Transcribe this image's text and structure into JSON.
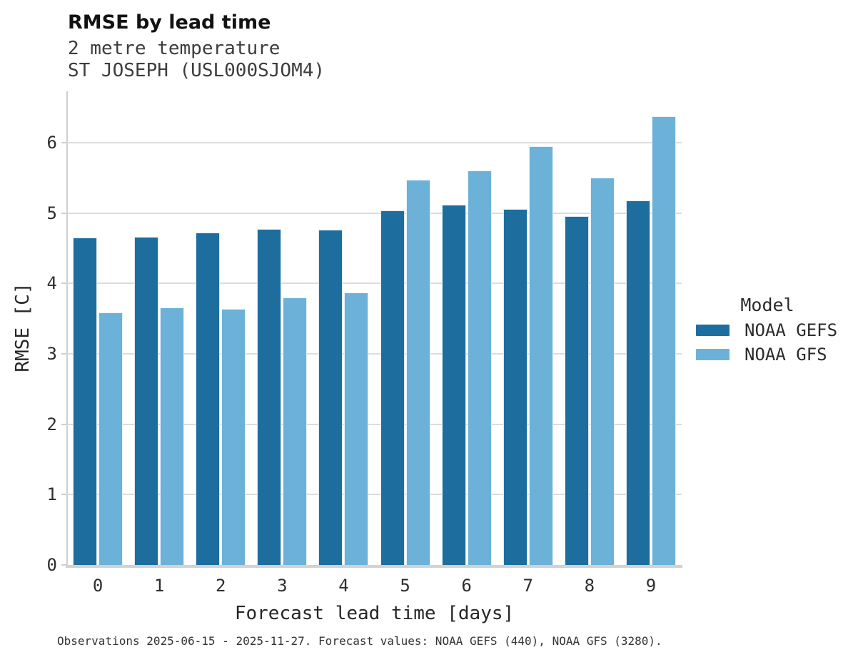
{
  "header": {
    "title": "RMSE by lead time",
    "subtitle_line1": "2 metre temperature",
    "subtitle_line2": "ST JOSEPH (USL000SJOM4)"
  },
  "legend": {
    "title": "Model",
    "items": [
      {
        "label": "NOAA GEFS",
        "color": "#1D6E9E"
      },
      {
        "label": "NOAA GFS",
        "color": "#6CB1D8"
      }
    ]
  },
  "caption": "Observations 2025-06-15 - 2025-11-27. Forecast values: NOAA GEFS (440), NOAA GFS (3280).",
  "colors": {
    "series_dark": "#1D6E9E",
    "series_light": "#6CB1D8",
    "gridline": "#dcdcdc",
    "spine": "#cfcfcf",
    "background": "#ffffff"
  },
  "chart_data": {
    "type": "bar",
    "title": "RMSE by lead time",
    "subtitle": [
      "2 metre temperature",
      "ST JOSEPH (USL000SJOM4)"
    ],
    "categories": [
      "0",
      "1",
      "2",
      "3",
      "4",
      "5",
      "6",
      "7",
      "8",
      "9"
    ],
    "series": [
      {
        "name": "NOAA GEFS",
        "color": "#1D6E9E",
        "values": [
          4.65,
          4.66,
          4.72,
          4.77,
          4.76,
          5.04,
          5.12,
          5.06,
          4.96,
          5.18
        ]
      },
      {
        "name": "NOAA GFS",
        "color": "#6CB1D8",
        "values": [
          3.59,
          3.66,
          3.64,
          3.8,
          3.87,
          5.47,
          5.61,
          5.95,
          5.5,
          6.38
        ]
      }
    ],
    "xlabel": "Forecast lead time [days]",
    "ylabel": "RMSE [C]",
    "ylim": [
      0,
      6.73
    ],
    "yticks": [
      0,
      1,
      2,
      3,
      4,
      5,
      6
    ],
    "grid": true,
    "legend_position": "right",
    "legend_title": "Model"
  }
}
